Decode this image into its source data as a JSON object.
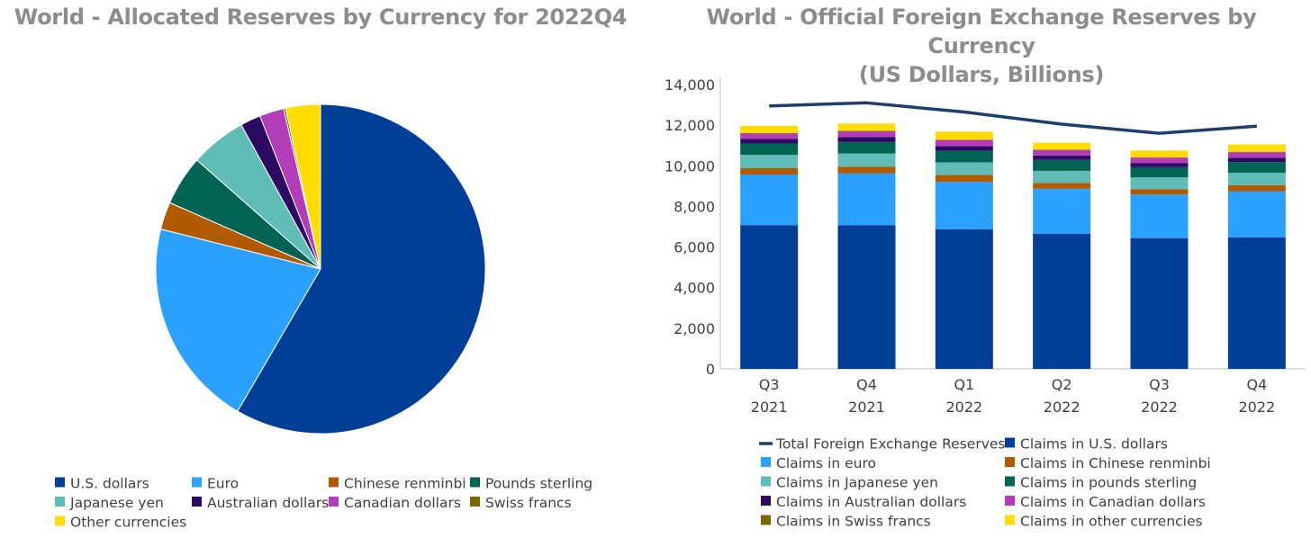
{
  "pie_chart": {
    "title": "World - Allocated Reserves by Currency for 2022Q4"
  },
  "bar_chart": {
    "title_line1": "World - Official Foreign Exchange Reserves by Currency",
    "title_line2": "(US Dollars, Billions)"
  },
  "chart_data": [
    {
      "type": "pie",
      "title": "World - Allocated Reserves by Currency for 2022Q4",
      "legend_placement": "bottom",
      "slices": [
        {
          "label": "U.S. dollars",
          "value": 58.4,
          "color": "#003f98"
        },
        {
          "label": "Euro",
          "value": 20.5,
          "color": "#2aa1ff"
        },
        {
          "label": "Chinese renminbi",
          "value": 2.7,
          "color": "#b25a00"
        },
        {
          "label": "Pounds sterling",
          "value": 4.9,
          "color": "#006354"
        },
        {
          "label": "Japanese yen",
          "value": 5.5,
          "color": "#5fbcb6"
        },
        {
          "label": "Australian dollars",
          "value": 2.0,
          "color": "#2e0b63"
        },
        {
          "label": "Canadian dollars",
          "value": 2.4,
          "color": "#b33cb8"
        },
        {
          "label": "Swiss francs",
          "value": 0.2,
          "color": "#7d6600"
        },
        {
          "label": "Other currencies",
          "value": 3.4,
          "color": "#ffdd00"
        }
      ]
    },
    {
      "type": "bar",
      "stacked": true,
      "title": "World - Official Foreign Exchange Reserves by Currency (US Dollars, Billions)",
      "categories": [
        [
          "Q3",
          "2021"
        ],
        [
          "Q4",
          "2021"
        ],
        [
          "Q1",
          "2022"
        ],
        [
          "Q2",
          "2022"
        ],
        [
          "Q3",
          "2022"
        ],
        [
          "Q4",
          "2022"
        ]
      ],
      "ylim": [
        0,
        14000
      ],
      "yticks": [
        0,
        2000,
        4000,
        6000,
        8000,
        10000,
        12000,
        14000
      ],
      "ytick_labels": [
        "0",
        "2,000",
        "4,000",
        "6,000",
        "8,000",
        "10,000",
        "12,000",
        "14,000"
      ],
      "grid": false,
      "legend_placement": "bottom",
      "line": {
        "name": "Total Foreign Exchange Reserves",
        "color": "#1c3f6e",
        "values": [
          12950,
          13100,
          12650,
          12050,
          11600,
          11950
        ]
      },
      "series": [
        {
          "name": "Claims in U.S. dollars",
          "color": "#003f98",
          "values": [
            7080,
            7080,
            6880,
            6660,
            6440,
            6470
          ]
        },
        {
          "name": "Claims in euro",
          "color": "#2aa1ff",
          "values": [
            2490,
            2540,
            2330,
            2210,
            2140,
            2280
          ]
        },
        {
          "name": "Claims in Chinese renminbi",
          "color": "#b25a00",
          "values": [
            310,
            340,
            340,
            290,
            270,
            300
          ]
        },
        {
          "name": "Claims in Japanese yen",
          "color": "#5fbcb6",
          "values": [
            660,
            650,
            620,
            590,
            580,
            610
          ]
        },
        {
          "name": "Claims in pounds sterling",
          "color": "#006354",
          "values": [
            560,
            560,
            560,
            540,
            500,
            520
          ]
        },
        {
          "name": "Claims in Australian dollars",
          "color": "#2e0b63",
          "values": [
            220,
            240,
            240,
            220,
            210,
            220
          ]
        },
        {
          "name": "Claims in Canadian dollars",
          "color": "#b33cb8",
          "values": [
            270,
            290,
            300,
            270,
            260,
            270
          ]
        },
        {
          "name": "Claims in Swiss francs",
          "color": "#7d6600",
          "values": [
            20,
            20,
            20,
            20,
            20,
            20
          ]
        },
        {
          "name": "Claims in other currencies",
          "color": "#ffdd00",
          "values": [
            360,
            360,
            390,
            330,
            330,
            360
          ]
        }
      ]
    }
  ]
}
